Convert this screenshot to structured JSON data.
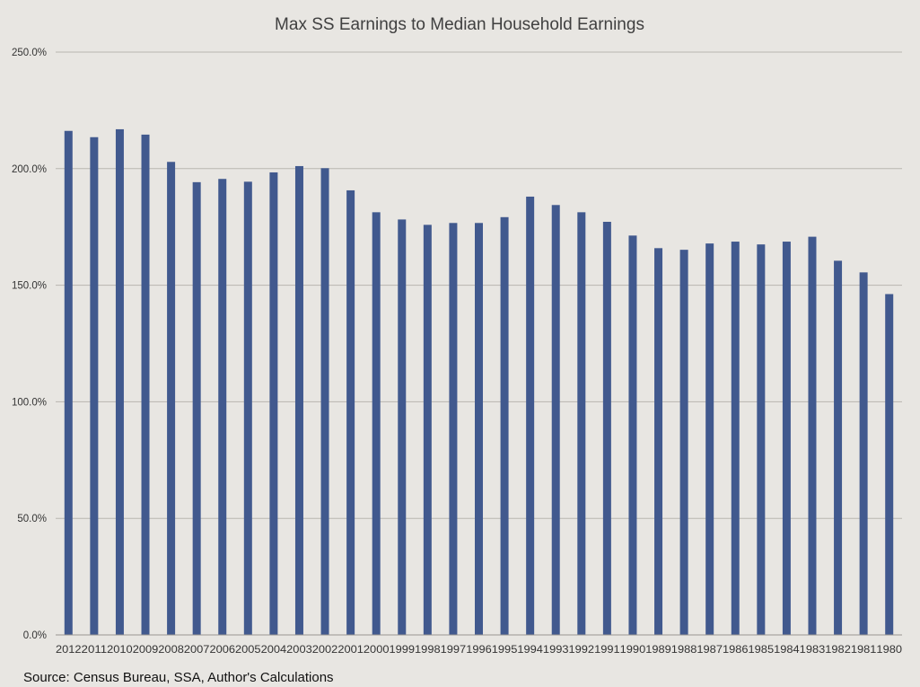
{
  "chart_data": {
    "type": "bar",
    "title": "Max SS Earnings to Median Household Earnings",
    "xlabel": "",
    "ylabel": "",
    "ylim": [
      0,
      250
    ],
    "yticks": [
      0,
      50,
      100,
      150,
      200,
      250
    ],
    "ytick_labels": [
      "0.0%",
      "50.0%",
      "100.0%",
      "150.0%",
      "200.0%",
      "250.0%"
    ],
    "grid": true,
    "legend": "none",
    "categories": [
      "2012",
      "2011",
      "2010",
      "2009",
      "2008",
      "2007",
      "2006",
      "2005",
      "2004",
      "2003",
      "2002",
      "2001",
      "2000",
      "1999",
      "1998",
      "1997",
      "1996",
      "1995",
      "1994",
      "1993",
      "1992",
      "1991",
      "1990",
      "1989",
      "1988",
      "1987",
      "1986",
      "1985",
      "1984",
      "1983",
      "1982",
      "1981",
      "1980"
    ],
    "values": [
      216.2,
      213.5,
      216.9,
      214.6,
      202.9,
      194.2,
      195.6,
      194.4,
      198.4,
      201.1,
      200.2,
      190.7,
      181.3,
      178.2,
      175.9,
      176.7,
      176.7,
      179.2,
      188.0,
      184.4,
      181.3,
      177.2,
      171.3,
      165.9,
      165.2,
      167.9,
      168.7,
      167.5,
      168.7,
      170.8,
      160.5,
      155.5,
      146.2
    ],
    "bar_color": "#41598e",
    "source": "Source: Census Bureau, SSA, Author's Calculations"
  }
}
